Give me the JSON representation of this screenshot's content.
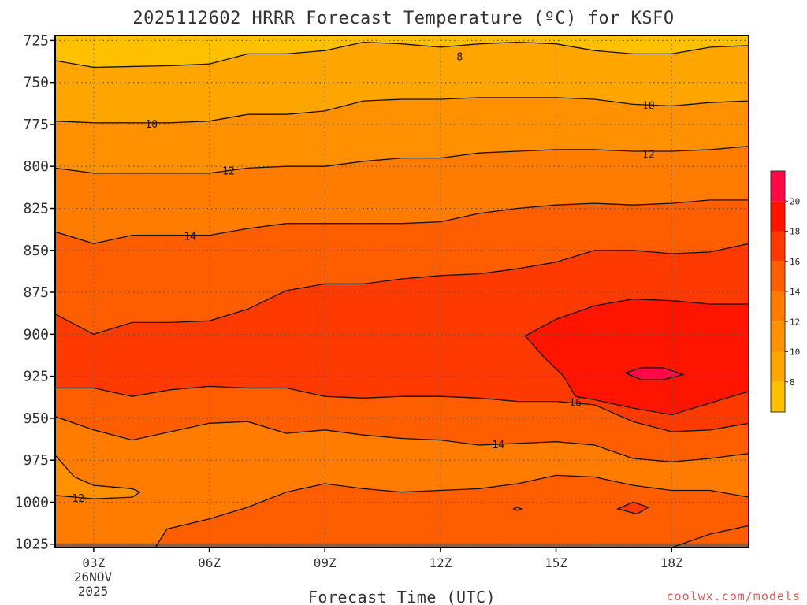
{
  "chart_data": {
    "type": "heatmap",
    "title": "2025112602 HRRR Forecast Temperature (ºC) for KSFO",
    "xlabel": "Forecast Time (UTC)",
    "ylabel": "",
    "x_ticks": [
      "03Z",
      "06Z",
      "09Z",
      "12Z",
      "15Z",
      "18Z"
    ],
    "x_date_label": [
      "26NOV",
      "2025"
    ],
    "x_range_hours": [
      2,
      20
    ],
    "y_ticks": [
      725,
      750,
      775,
      800,
      825,
      850,
      875,
      900,
      925,
      950,
      975,
      1000,
      1025
    ],
    "y_range": [
      722,
      1027
    ],
    "grid": true,
    "contour_interval": 2,
    "bands": [
      {
        "range": "< 8",
        "color": "#FFC000"
      },
      {
        "range": "8-10",
        "color": "#FFA500"
      },
      {
        "range": "10-12",
        "color": "#FF9000"
      },
      {
        "range": "12-14",
        "color": "#FF7C00"
      },
      {
        "range": "14-16",
        "color": "#FF5E00"
      },
      {
        "range": "16-18",
        "color": "#FF3A00"
      },
      {
        "range": "18-20",
        "color": "#FF1400"
      },
      {
        "range": "> 20",
        "color": "#FF0A46"
      }
    ],
    "contours": [
      {
        "level": 8,
        "label_at": [
          [
            11.9,
            735
          ]
        ],
        "points": [
          [
            2,
            737
          ],
          [
            3,
            741
          ],
          [
            5,
            740
          ],
          [
            6,
            739
          ],
          [
            7,
            733
          ],
          [
            8,
            733
          ],
          [
            9,
            731
          ],
          [
            10,
            726
          ],
          [
            11,
            727
          ],
          [
            12,
            729
          ],
          [
            13,
            727
          ],
          [
            14,
            726
          ],
          [
            15,
            727
          ],
          [
            16,
            731
          ],
          [
            17,
            733
          ],
          [
            18,
            733
          ],
          [
            19,
            729
          ],
          [
            20,
            728
          ]
        ]
      },
      {
        "level": 10,
        "label_at": [
          [
            3.9,
            775
          ],
          [
            16.8,
            764
          ]
        ],
        "points": [
          [
            2,
            773
          ],
          [
            3,
            774
          ],
          [
            4,
            774
          ],
          [
            5,
            774
          ],
          [
            6,
            773
          ],
          [
            7,
            769
          ],
          [
            8,
            769
          ],
          [
            9,
            767
          ],
          [
            10,
            761
          ],
          [
            11,
            760
          ],
          [
            12,
            760
          ],
          [
            13,
            759
          ],
          [
            14,
            759
          ],
          [
            15,
            759
          ],
          [
            16,
            760
          ],
          [
            17,
            763
          ],
          [
            18,
            764
          ],
          [
            19,
            762
          ],
          [
            20,
            761
          ]
        ]
      },
      {
        "level": 12,
        "label_at": [
          [
            5.9,
            803
          ],
          [
            16.8,
            793
          ]
        ],
        "points": [
          [
            2,
            801
          ],
          [
            3,
            804
          ],
          [
            5,
            804
          ],
          [
            6,
            804
          ],
          [
            7,
            801
          ],
          [
            8,
            800
          ],
          [
            9,
            800
          ],
          [
            10,
            797
          ],
          [
            11,
            795
          ],
          [
            12,
            795
          ],
          [
            13,
            792
          ],
          [
            14,
            791
          ],
          [
            15,
            790
          ],
          [
            16,
            790
          ],
          [
            17,
            791
          ],
          [
            18,
            791
          ],
          [
            19,
            790
          ],
          [
            20,
            788
          ]
        ]
      },
      {
        "level": 14,
        "label_at": [
          [
            4.9,
            842
          ]
        ],
        "points": [
          [
            2,
            839
          ],
          [
            3,
            846
          ],
          [
            4,
            841
          ],
          [
            5,
            841
          ],
          [
            6,
            841
          ],
          [
            7,
            837
          ],
          [
            8,
            834
          ],
          [
            9,
            834
          ],
          [
            10,
            834
          ],
          [
            11,
            834
          ],
          [
            12,
            833
          ],
          [
            13,
            828
          ],
          [
            14,
            825
          ],
          [
            15,
            823
          ],
          [
            16,
            822
          ],
          [
            17,
            823
          ],
          [
            18,
            822
          ],
          [
            19,
            820
          ],
          [
            20,
            820
          ]
        ]
      },
      {
        "level": 14,
        "label_at": [
          [
            12.9,
            966
          ]
        ],
        "points": [
          [
            2,
            949
          ],
          [
            3,
            957
          ],
          [
            4,
            963
          ],
          [
            5,
            958
          ],
          [
            6,
            953
          ],
          [
            7,
            952
          ],
          [
            8,
            959
          ],
          [
            9,
            957
          ],
          [
            10,
            960
          ],
          [
            11,
            962
          ],
          [
            12,
            963
          ],
          [
            13,
            966
          ],
          [
            14,
            965
          ],
          [
            15,
            964
          ],
          [
            16,
            966
          ],
          [
            17,
            974
          ],
          [
            18,
            976
          ],
          [
            19,
            974
          ],
          [
            20,
            971
          ]
        ]
      },
      {
        "level": 16,
        "label_at": [
          [
            14.9,
            941
          ]
        ],
        "points": [
          [
            2,
            888
          ],
          [
            3,
            900
          ],
          [
            4,
            893
          ],
          [
            5,
            893
          ],
          [
            6,
            892
          ],
          [
            7,
            885
          ],
          [
            8,
            874
          ],
          [
            9,
            870
          ],
          [
            10,
            870
          ],
          [
            11,
            867
          ],
          [
            12,
            865
          ],
          [
            13,
            864
          ],
          [
            14,
            861
          ],
          [
            15,
            857
          ],
          [
            16,
            850
          ],
          [
            17,
            850
          ],
          [
            18,
            852
          ],
          [
            19,
            851
          ],
          [
            20,
            846
          ]
        ]
      },
      {
        "level": 16,
        "label_at": [],
        "points": [
          [
            2,
            932
          ],
          [
            3,
            932
          ],
          [
            4,
            937
          ],
          [
            5,
            933
          ],
          [
            6,
            931
          ],
          [
            7,
            932
          ],
          [
            8,
            932
          ],
          [
            9,
            937
          ],
          [
            10,
            938
          ],
          [
            11,
            937
          ],
          [
            12,
            937
          ],
          [
            13,
            938
          ],
          [
            14,
            940
          ],
          [
            15,
            940
          ],
          [
            16,
            942
          ],
          [
            17,
            952
          ],
          [
            18,
            958
          ],
          [
            19,
            957
          ],
          [
            20,
            953
          ]
        ]
      },
      {
        "level": 18,
        "label_at": [],
        "closed": true,
        "points": [
          [
            14.2,
            901
          ],
          [
            15,
            891
          ],
          [
            16,
            883
          ],
          [
            17,
            879
          ],
          [
            18,
            880
          ],
          [
            19,
            882
          ],
          [
            20,
            882
          ],
          [
            20,
            934
          ],
          [
            19,
            941
          ],
          [
            18,
            948
          ],
          [
            17,
            944
          ],
          [
            16,
            939
          ],
          [
            15.5,
            937
          ],
          [
            15.2,
            925
          ],
          [
            14.7,
            914
          ]
        ]
      },
      {
        "level": 20,
        "label_at": [],
        "closed": true,
        "points": [
          [
            16.8,
            923
          ],
          [
            17.2,
            920
          ],
          [
            17.8,
            920
          ],
          [
            18.3,
            924
          ],
          [
            17.8,
            927
          ],
          [
            17.2,
            927
          ]
        ]
      },
      {
        "level": 12,
        "label_at": [
          [
            2.0,
            998
          ]
        ],
        "points": [
          [
            2,
            996
          ],
          [
            3,
            998
          ],
          [
            4,
            997
          ],
          [
            4.2,
            994
          ],
          [
            4,
            992
          ],
          [
            3,
            990
          ],
          [
            2.5,
            985
          ],
          [
            2,
            972
          ]
        ]
      },
      {
        "level": 14,
        "label_at": [],
        "points": [
          [
            6,
            1010
          ],
          [
            7,
            1003
          ],
          [
            8,
            994
          ],
          [
            9,
            989
          ],
          [
            10,
            992
          ],
          [
            11,
            994
          ],
          [
            12,
            993
          ],
          [
            13,
            992
          ],
          [
            14,
            989
          ],
          [
            15,
            984
          ],
          [
            16,
            985
          ],
          [
            17,
            990
          ],
          [
            18,
            993
          ],
          [
            19,
            993
          ],
          [
            20,
            997
          ]
        ]
      },
      {
        "level": 14,
        "label_at": [],
        "points": [
          [
            4.6,
            1027
          ],
          [
            4.9,
            1016
          ],
          [
            6,
            1010
          ]
        ]
      },
      {
        "level": 14,
        "label_at": [],
        "points": [
          [
            18,
            1027
          ],
          [
            19,
            1019
          ],
          [
            20,
            1014
          ]
        ]
      },
      {
        "level": 14,
        "label_at": [],
        "closed": true,
        "points": [
          [
            16.6,
            1004
          ],
          [
            17.0,
            1000
          ],
          [
            17.4,
            1003
          ],
          [
            17.1,
            1007
          ]
        ]
      },
      {
        "level": 14,
        "label_at": [],
        "closed": true,
        "points": [
          [
            13.9,
            1004
          ],
          [
            14.0,
            1003
          ],
          [
            14.1,
            1004
          ],
          [
            14.0,
            1005
          ]
        ]
      }
    ],
    "colorbar": {
      "labels": [
        "8",
        "10",
        "12",
        "14",
        "16",
        "18",
        "20"
      ],
      "colors": [
        "#FFC000",
        "#FFA500",
        "#FF9000",
        "#FF7C00",
        "#FF5E00",
        "#FF3A00",
        "#FF1400",
        "#FF0A46"
      ]
    },
    "ground_color": "#9C5A32"
  },
  "watermark": "coolwx.com/models"
}
